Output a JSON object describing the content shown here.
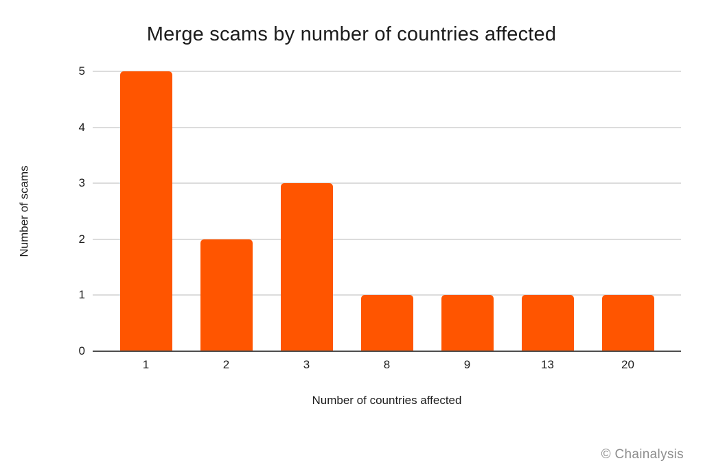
{
  "title": "Merge scams by number of countries affected",
  "chart_data": {
    "type": "bar",
    "title": "Merge scams by number of countries affected",
    "categories": [
      "1",
      "2",
      "3",
      "8",
      "9",
      "13",
      "20"
    ],
    "values": [
      5,
      2,
      3,
      1,
      1,
      1,
      1
    ],
    "xlabel": "Number of countries affected",
    "ylabel": "Number of scams",
    "ylim": [
      0,
      5
    ],
    "yticks": [
      0,
      1,
      2,
      3,
      4,
      5
    ],
    "grid": true,
    "legend": false,
    "bar_color": "#FF5500"
  },
  "colors": {
    "bar": "#FF5500",
    "gridline": "#dcdcdc",
    "axis_line": "#4d4d4d",
    "text": "#1c1c1c",
    "credit_text": "#8e8e8e",
    "background": "#ffffff"
  },
  "footer": {
    "credit": "© Chainalysis"
  }
}
